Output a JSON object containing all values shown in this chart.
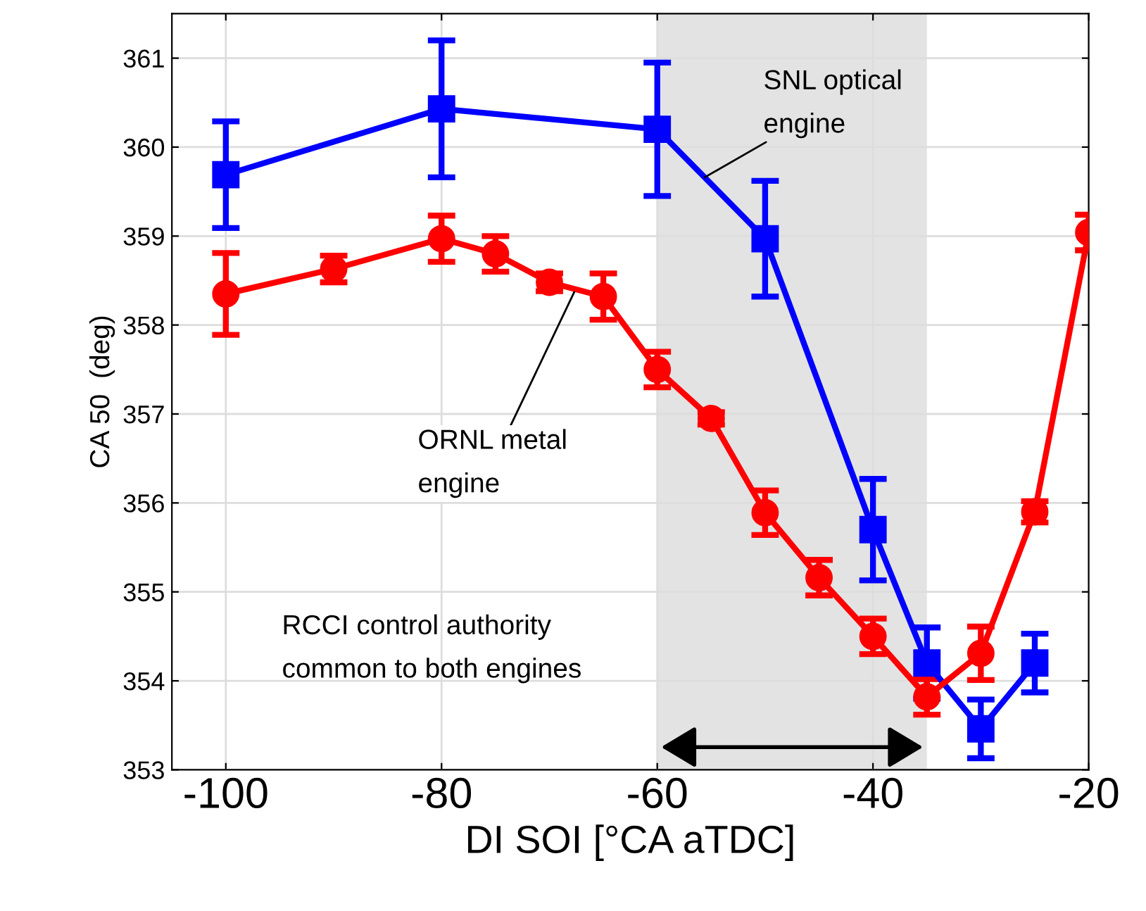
{
  "chart_data": {
    "type": "line",
    "xlabel": "DI SOI [°CA aTDC]",
    "ylabel": "CA 50  (deg)",
    "xlim": [
      -105,
      -20
    ],
    "xticks": [
      -100,
      -80,
      -60,
      -40,
      -20
    ],
    "ylim": [
      353,
      361.5
    ],
    "yticks": [
      353,
      354,
      355,
      356,
      357,
      358,
      359,
      360,
      361
    ],
    "grid": true,
    "line_style": "solid",
    "series": [
      {
        "color": "#0000ff",
        "marker": "square",
        "x": [
          -100,
          -80,
          -60,
          -50,
          -40,
          -35,
          -30,
          -25
        ],
        "values": [
          359.69,
          360.43,
          360.2,
          358.97,
          355.7,
          354.2,
          353.46,
          354.2
        ],
        "errors": [
          0.6,
          0.77,
          0.75,
          0.65,
          0.57,
          0.4,
          0.33,
          0.33
        ]
      },
      {
        "color": "#ff0000",
        "marker": "circle",
        "x": [
          -100,
          -90,
          -80,
          -75,
          -70,
          -65,
          -60,
          -55,
          -50,
          -45,
          -40,
          -35,
          -30,
          -25,
          -20
        ],
        "values": [
          358.35,
          358.63,
          358.97,
          358.8,
          358.48,
          358.32,
          357.5,
          356.95,
          355.89,
          355.16,
          354.5,
          353.82,
          354.31,
          355.9,
          359.04
        ],
        "errors": [
          0.46,
          0.15,
          0.26,
          0.2,
          0.1,
          0.26,
          0.2,
          0.07,
          0.25,
          0.2,
          0.2,
          0.2,
          0.3,
          0.12,
          0.2
        ]
      }
    ],
    "bands": [
      {
        "axis": "x",
        "from": -60,
        "to": -35,
        "color": "#e3e3e3"
      }
    ],
    "annotations": [
      {
        "text": "SNL optical\nengine",
        "x": -55.6,
        "y": 359.66
      },
      {
        "text": "ORNL metal\nengine",
        "x": -67.7,
        "y": 358.37
      },
      "RCCI control authority\ncommon to both engines"
    ]
  }
}
